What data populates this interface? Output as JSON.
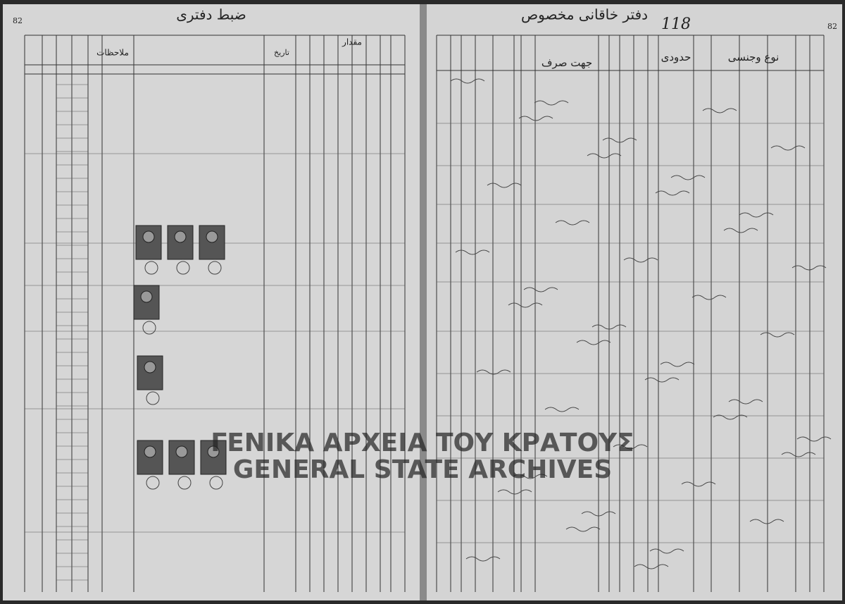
{
  "left_page": {
    "page_number": "82",
    "title": "ضبط دفتری",
    "columns": {
      "remarks": "ملاحظات",
      "amount": "مقدار",
      "dates": "تاریخ"
    }
  },
  "right_page": {
    "page_number": "82",
    "folio": "118",
    "title": "دفتر خاقانی مخصوص",
    "columns": {
      "kind": "نوع وجنسی",
      "boundaries": "حدودی",
      "purpose": "جهت صرف"
    }
  },
  "watermark": {
    "line1": "ΓΕΝΙΚΑ ΑΡΧΕΙΑ ΤΟΥ ΚΡΑΤΟΥΣ",
    "line2": "GENERAL STATE ARCHIVES"
  }
}
